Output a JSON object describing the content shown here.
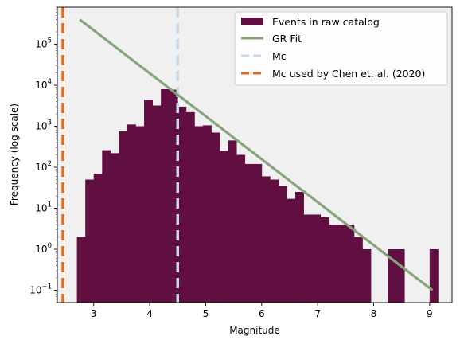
{
  "chart_data": {
    "type": "bar",
    "title": "",
    "xlabel": "Magnitude",
    "ylabel": "Frequency (log scale)",
    "xlim": [
      2.35,
      9.4
    ],
    "ylim": [
      0.05,
      800000
    ],
    "yscale": "log",
    "grid": false,
    "background": "#f0f0f0",
    "legend_position": "top-right",
    "x_ticks": [
      3,
      4,
      5,
      6,
      7,
      8,
      9
    ],
    "y_ticks": [
      {
        "value": 0.1,
        "base": "10",
        "exp": "−1"
      },
      {
        "value": 1,
        "base": "10",
        "exp": "0"
      },
      {
        "value": 10,
        "base": "10",
        "exp": "1"
      },
      {
        "value": 100,
        "base": "10",
        "exp": "2"
      },
      {
        "value": 1000,
        "base": "10",
        "exp": "3"
      },
      {
        "value": 10000,
        "base": "10",
        "exp": "4"
      },
      {
        "value": 100000,
        "base": "10",
        "exp": "5"
      }
    ],
    "histogram": {
      "name": "Events in raw catalog",
      "color": "#610f40",
      "bin_width": 0.15,
      "bins": [
        {
          "start": 2.7,
          "count": 2
        },
        {
          "start": 2.85,
          "count": 50
        },
        {
          "start": 3.0,
          "count": 70
        },
        {
          "start": 3.15,
          "count": 260
        },
        {
          "start": 3.3,
          "count": 220
        },
        {
          "start": 3.45,
          "count": 750
        },
        {
          "start": 3.6,
          "count": 1100
        },
        {
          "start": 3.75,
          "count": 1000
        },
        {
          "start": 3.9,
          "count": 4400
        },
        {
          "start": 4.05,
          "count": 3200
        },
        {
          "start": 4.2,
          "count": 8000
        },
        {
          "start": 4.35,
          "count": 7800
        },
        {
          "start": 4.5,
          "count": 3000
        },
        {
          "start": 4.65,
          "count": 2200
        },
        {
          "start": 4.8,
          "count": 1000
        },
        {
          "start": 4.95,
          "count": 1050
        },
        {
          "start": 5.1,
          "count": 700
        },
        {
          "start": 5.25,
          "count": 250
        },
        {
          "start": 5.4,
          "count": 450
        },
        {
          "start": 5.55,
          "count": 200
        },
        {
          "start": 5.7,
          "count": 120
        },
        {
          "start": 5.85,
          "count": 120
        },
        {
          "start": 6.0,
          "count": 60
        },
        {
          "start": 6.15,
          "count": 50
        },
        {
          "start": 6.3,
          "count": 35
        },
        {
          "start": 6.45,
          "count": 17
        },
        {
          "start": 6.6,
          "count": 25
        },
        {
          "start": 6.75,
          "count": 7
        },
        {
          "start": 6.9,
          "count": 7
        },
        {
          "start": 7.05,
          "count": 6
        },
        {
          "start": 7.2,
          "count": 4
        },
        {
          "start": 7.35,
          "count": 4
        },
        {
          "start": 7.5,
          "count": 4
        },
        {
          "start": 7.65,
          "count": 2
        },
        {
          "start": 7.8,
          "count": 1
        },
        {
          "start": 8.25,
          "count": 1
        },
        {
          "start": 8.4,
          "count": 1
        },
        {
          "start": 9.0,
          "count": 1
        }
      ]
    },
    "gr_fit": {
      "name": "GR Fit",
      "color": "#87a57b",
      "x": [
        2.75,
        9.05
      ],
      "y": [
        400000,
        0.1
      ]
    },
    "mc": {
      "name": "Mc",
      "color": "#c7d9ec",
      "value": 4.5
    },
    "mc_chen": {
      "name": "Mc used by Chen et. al. (2020)",
      "color": "#e06a1f",
      "value": 2.45
    }
  }
}
